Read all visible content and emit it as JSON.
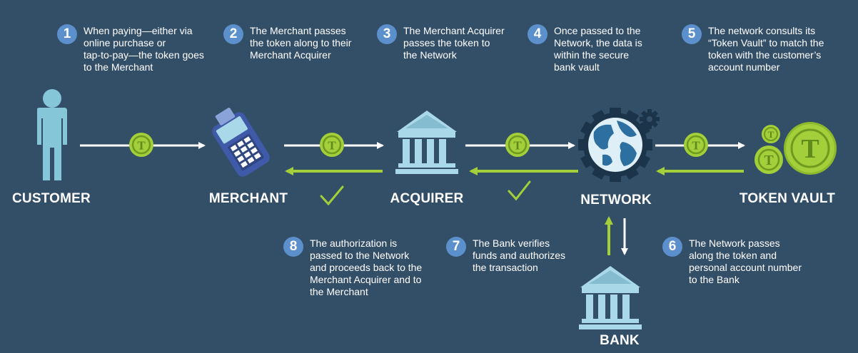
{
  "steps": [
    {
      "num": "1",
      "text": "When paying—either via\nonline purchase or\ntap-to-pay—the token goes\nto the Merchant"
    },
    {
      "num": "2",
      "text": "The Merchant passes\nthe token along to their\nMerchant Acquirer"
    },
    {
      "num": "3",
      "text": "The Merchant Acquirer\npasses the token to\nthe Network"
    },
    {
      "num": "4",
      "text": "Once passed to the\nNetwork, the data is\nwithin the secure\nbank vault"
    },
    {
      "num": "5",
      "text": "The network consults its\n“Token Vault” to match the\ntoken with the customer’s\naccount number"
    },
    {
      "num": "6",
      "text": "The Network passes\nalong the token and\npersonal account number\nto the Bank"
    },
    {
      "num": "7",
      "text": "The Bank verifies\nfunds and authorizes\nthe transaction"
    },
    {
      "num": "8",
      "text": "The authorization is\npassed to the Network\nand proceeds back to the\nMerchant Acquirer and to\nthe Merchant"
    }
  ],
  "nodes": {
    "customer": "CUSTOMER",
    "merchant": "MERCHANT",
    "acquirer": "ACQUIRER",
    "network": "NETWORK",
    "token_vault": "TOKEN VAULT",
    "bank": "BANK"
  },
  "token_glyph": "T",
  "colors": {
    "background": "#334f68",
    "figure": "#86c6d9",
    "token": "#a2cf3a",
    "token_dark": "#5f8a1c",
    "arrow_white": "#ffffff",
    "arrow_green": "#a2cf3a",
    "step_circle": "#5b90cc",
    "device": "#3f5aa8",
    "building": "#a9d9e8",
    "gear": "#1c3449"
  }
}
